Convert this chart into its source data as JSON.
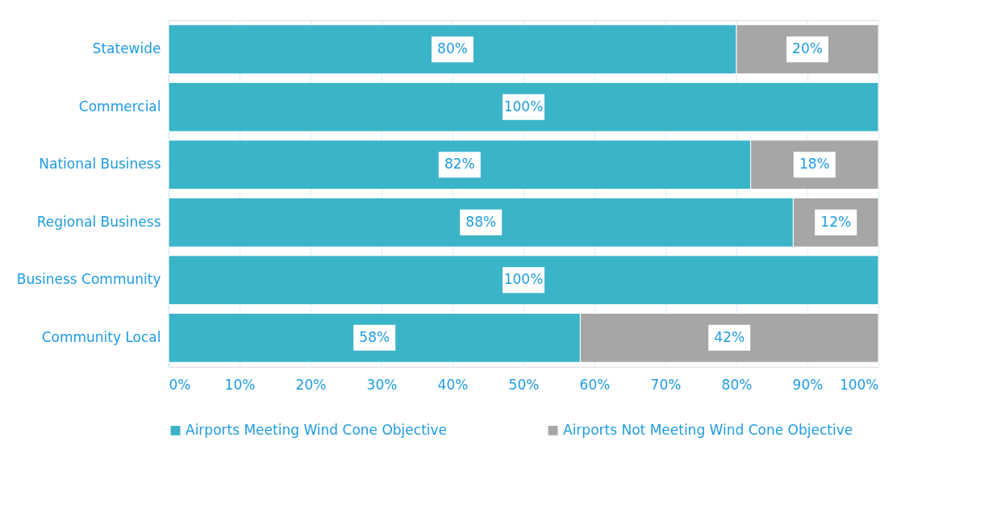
{
  "chart_data": {
    "type": "bar",
    "orientation": "horizontal",
    "stacked": true,
    "categories": [
      "Statewide",
      "Commercial",
      "National Business",
      "Regional Business",
      "Business Community",
      "Community Local"
    ],
    "series": [
      {
        "name": "Airports Meeting Wind Cone Objective",
        "color": "#3bb4c8",
        "values": [
          80,
          100,
          82,
          88,
          100,
          58
        ],
        "value_labels": [
          "80%",
          "100%",
          "82%",
          "88%",
          "100%",
          "58%"
        ]
      },
      {
        "name": "Airports Not Meeting Wind Cone Objective",
        "color": "#a6a6a6",
        "values": [
          20,
          0,
          18,
          12,
          0,
          42
        ],
        "value_labels": [
          "20%",
          null,
          "18%",
          "12%",
          null,
          "42%"
        ]
      }
    ],
    "xlim": [
      0,
      100
    ],
    "xticks": [
      {
        "value": 0,
        "label": "0%"
      },
      {
        "value": 10,
        "label": "10%"
      },
      {
        "value": 20,
        "label": "20%"
      },
      {
        "value": 30,
        "label": "30%"
      },
      {
        "value": 40,
        "label": "40%"
      },
      {
        "value": 50,
        "label": "50%"
      },
      {
        "value": 60,
        "label": "60%"
      },
      {
        "value": 70,
        "label": "70%"
      },
      {
        "value": 80,
        "label": "80%"
      },
      {
        "value": 90,
        "label": "90%"
      },
      {
        "value": 100,
        "label": "100%"
      }
    ],
    "grid": "x",
    "legend": "bottom"
  }
}
